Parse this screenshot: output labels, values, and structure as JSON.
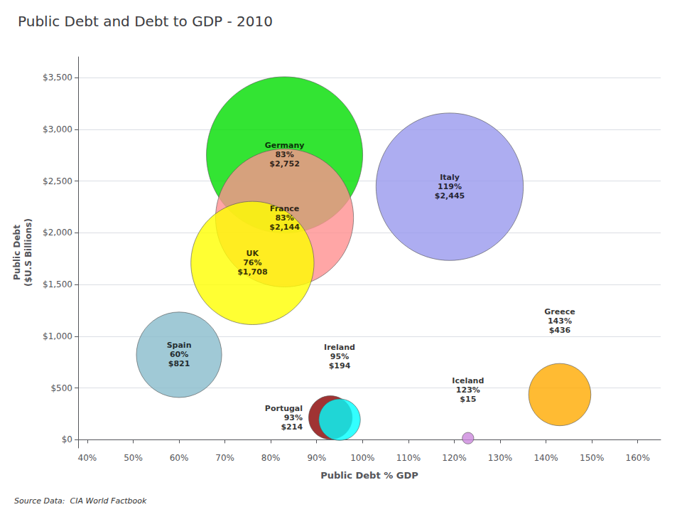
{
  "chart_data": {
    "type": "bubble",
    "title": "Public Debt and Debt to GDP - 2010",
    "xlabel": "Public Debt % GDP",
    "ylabel": "Public Debt\n($U.S Billions)",
    "annotations": [
      "Source Data:  CIA World Factbook"
    ],
    "x": [
      0.83,
      0.83,
      0.76,
      1.19,
      0.6,
      1.43,
      0.93,
      0.95,
      1.23
    ],
    "values": [
      2752,
      2144,
      1708,
      2445,
      821,
      436,
      214,
      194,
      15
    ],
    "value_labels": [
      "Germany\n83%\n$2,752",
      "France\n83%\n$2,144",
      "UK\n76%\n$1,708",
      "Italy\n119%\n$2,445",
      "Spain\n60%\n$821",
      "Greece\n143%\n$436",
      "Portugal\n93%\n$214",
      "Ireland\n95%\n$194",
      "Iceland\n123%\n$15"
    ],
    "colors": [
      "#00dd00",
      "#ff9090",
      "#ffff00",
      "#9999ee",
      "#88bbcc",
      "#ffaa00",
      "#880000",
      "#00ffff",
      "#cc88dd"
    ],
    "data_labels": true,
    "xlim": [
      0.38,
      1.65
    ],
    "ylim": [
      -80,
      3700
    ],
    "xticks": [
      {
        "value": 0.4,
        "label": "40%"
      },
      {
        "value": 0.5,
        "label": "50%"
      },
      {
        "value": 0.6,
        "label": "60%"
      },
      {
        "value": 0.7,
        "label": "70%"
      },
      {
        "value": 0.8,
        "label": "80%"
      },
      {
        "value": 0.9,
        "label": "90%"
      },
      {
        "value": 1.0,
        "label": "100%"
      },
      {
        "value": 1.1,
        "label": "110%"
      },
      {
        "value": 1.2,
        "label": "120%"
      },
      {
        "value": 1.3,
        "label": "130%"
      },
      {
        "value": 1.4,
        "label": "140%"
      },
      {
        "value": 1.5,
        "label": "150%"
      },
      {
        "value": 1.6,
        "label": "160%"
      }
    ],
    "yticks": [
      {
        "value": 0,
        "label": "$0"
      },
      {
        "value": 500,
        "label": "$500"
      },
      {
        "value": 1000,
        "label": "$1,000"
      },
      {
        "value": 1500,
        "label": "$1,500"
      },
      {
        "value": 2000,
        "label": "$2,000"
      },
      {
        "value": 2500,
        "label": "$2,500"
      },
      {
        "value": 3000,
        "label": "$3,000"
      },
      {
        "value": 3500,
        "label": "$3,500"
      }
    ],
    "grid": true
  }
}
